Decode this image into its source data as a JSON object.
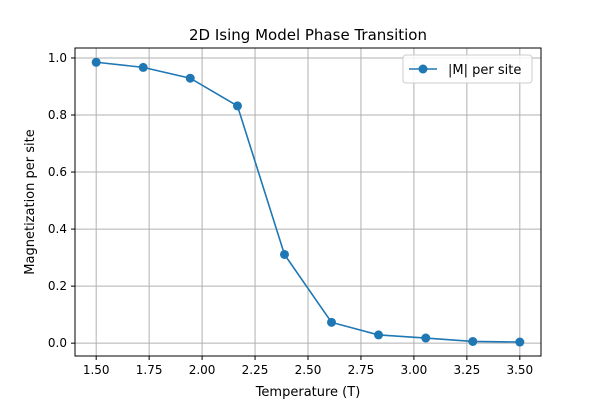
{
  "chart_data": {
    "type": "line",
    "title": "2D Ising Model Phase Transition",
    "xlabel": "Temperature (T)",
    "ylabel": "Magnetization per site",
    "xlim": [
      1.4,
      3.6
    ],
    "ylim": [
      -0.045,
      1.035
    ],
    "x_ticks": [
      1.5,
      1.75,
      2.0,
      2.25,
      2.5,
      2.75,
      3.0,
      3.25,
      3.5
    ],
    "x_tick_labels": [
      "1.50",
      "1.75",
      "2.00",
      "2.25",
      "2.50",
      "2.75",
      "3.00",
      "3.25",
      "3.50"
    ],
    "y_ticks": [
      0.0,
      0.2,
      0.4,
      0.6,
      0.8,
      1.0
    ],
    "y_tick_labels": [
      "0.0",
      "0.2",
      "0.4",
      "0.6",
      "0.8",
      "1.0"
    ],
    "grid": true,
    "legend_position": "top-right",
    "series": [
      {
        "name": "|M| per site",
        "color": "#1f77b4",
        "marker": "circle",
        "x": [
          1.5,
          1.722,
          1.944,
          2.167,
          2.389,
          2.611,
          2.833,
          3.056,
          3.278,
          3.5
        ],
        "y": [
          0.985,
          0.967,
          0.929,
          0.832,
          0.311,
          0.073,
          0.029,
          0.018,
          0.006,
          0.004
        ]
      }
    ]
  }
}
